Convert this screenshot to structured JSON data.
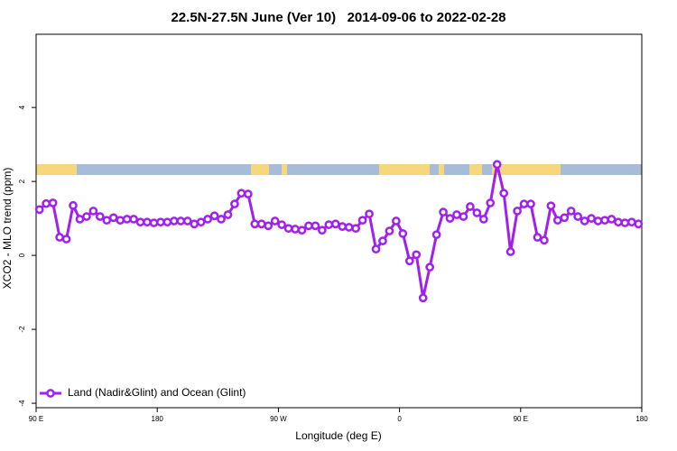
{
  "chart_data": {
    "type": "line",
    "title": "22.5N-27.5N June (Ver 10)   2014-09-06 to 2022-02-28",
    "x_label": "Longitude (deg E)",
    "y_label": "XCO2 - MLO trend (ppm)",
    "x": [
      92.5,
      97.5,
      102.5,
      107.5,
      112.5,
      117.5,
      122.5,
      127.5,
      132.5,
      137.5,
      142.5,
      147.5,
      152.5,
      157.5,
      162.5,
      167.5,
      172.5,
      177.5,
      182.5,
      187.5,
      192.5,
      197.5,
      202.5,
      207.5,
      212.5,
      217.5,
      222.5,
      227.5,
      232.5,
      237.5,
      242.5,
      247.5,
      252.5,
      257.5,
      262.5,
      267.5,
      272.5,
      277.5,
      282.5,
      287.5,
      292.5,
      297.5,
      302.5,
      307.5,
      312.5,
      317.5,
      322.5,
      327.5,
      332.5,
      337.5,
      342.5,
      347.5,
      352.5,
      357.5,
      362.5,
      367.5,
      372.5,
      377.5,
      382.5,
      387.5,
      392.5,
      397.5,
      402.5,
      407.5,
      412.5,
      417.5,
      422.5,
      427.5,
      432.5,
      437.5,
      442.5,
      447.5,
      452.5,
      457.5,
      462.5,
      467.5,
      472.5,
      477.5,
      482.5,
      487.5,
      492.5,
      497.5,
      502.5,
      507.5,
      512.5,
      517.5,
      522.5,
      527.5,
      532.5,
      537.5
    ],
    "series": [
      {
        "name": "Land (Nadir&Glint) and Ocean (Glint)",
        "color": "#a020f0",
        "values": [
          1.24,
          1.4,
          1.42,
          0.49,
          0.44,
          1.35,
          0.98,
          1.05,
          1.2,
          1.05,
          0.95,
          1.02,
          0.95,
          0.98,
          0.98,
          0.9,
          0.9,
          0.88,
          0.9,
          0.9,
          0.93,
          0.93,
          0.93,
          0.85,
          0.9,
          0.98,
          1.07,
          0.98,
          1.1,
          1.39,
          1.68,
          1.66,
          0.85,
          0.85,
          0.8,
          0.93,
          0.83,
          0.73,
          0.71,
          0.68,
          0.8,
          0.8,
          0.68,
          0.83,
          0.85,
          0.78,
          0.76,
          0.73,
          0.95,
          1.12,
          0.17,
          0.39,
          0.66,
          0.93,
          0.59,
          -0.15,
          0.02,
          -1.15,
          -0.32,
          0.56,
          1.17,
          1.0,
          1.1,
          1.05,
          1.32,
          1.15,
          0.98,
          1.42,
          2.46,
          1.68,
          0.1,
          1.2,
          1.39,
          1.39,
          0.49,
          0.41,
          1.34,
          0.95,
          1.02,
          1.2,
          1.05,
          0.93,
          1.0,
          0.93,
          0.95,
          0.98,
          0.9,
          0.88,
          0.9,
          0.85
        ]
      }
    ],
    "xlim": [
      90,
      540
    ],
    "xticks": [
      {
        "value": 90,
        "label": "90 E"
      },
      {
        "value": 180,
        "label": "180"
      },
      {
        "value": 270,
        "label": "90 W"
      },
      {
        "value": 360,
        "label": "0"
      },
      {
        "value": 450,
        "label": "90 E"
      },
      {
        "value": 540,
        "label": "180"
      }
    ],
    "ylim": [
      -4.12,
      5.98
    ],
    "yticks": [
      -4,
      -2,
      0,
      2,
      4
    ],
    "legend": "bottom-left"
  }
}
